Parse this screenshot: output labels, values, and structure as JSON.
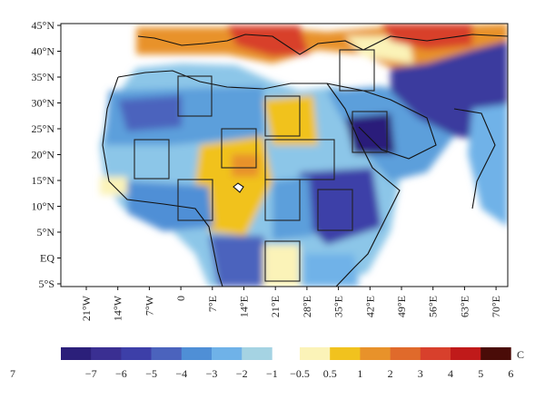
{
  "map": {
    "lat_labels": [
      "45°N",
      "40°N",
      "35°N",
      "30°N",
      "25°N",
      "20°N",
      "15°N",
      "10°N",
      "5°N",
      "EQ",
      "5°S"
    ],
    "lon_labels": [
      "21°W",
      "14°W",
      "7°W",
      "0",
      "7°E",
      "14°E",
      "21°E",
      "28°E",
      "35°E",
      "42°E",
      "49°E",
      "56°E",
      "63°E",
      "70°E"
    ],
    "lat_range": [
      -7,
      45
    ],
    "lon_range": [
      -28,
      77
    ],
    "boxes_count": 11
  },
  "colorbar": {
    "unit": "C",
    "labels": [
      "−7",
      "−6",
      "−5",
      "−4",
      "−3",
      "−2",
      "−1",
      "−0.5",
      "0.5",
      "1",
      "2",
      "3",
      "4",
      "5",
      "6",
      "7"
    ],
    "colors_neg": [
      "#2b1f7a",
      "#3a2f92",
      "#3d3fa8",
      "#4b63bd",
      "#4f8fd6",
      "#6fb2e8",
      "#a5d3e3"
    ],
    "colors_pos": [
      "#fbf3b8",
      "#f1c21e",
      "#e8922a",
      "#e06a2b",
      "#d8402c",
      "#c01a1a",
      "#4a0c08"
    ]
  }
}
